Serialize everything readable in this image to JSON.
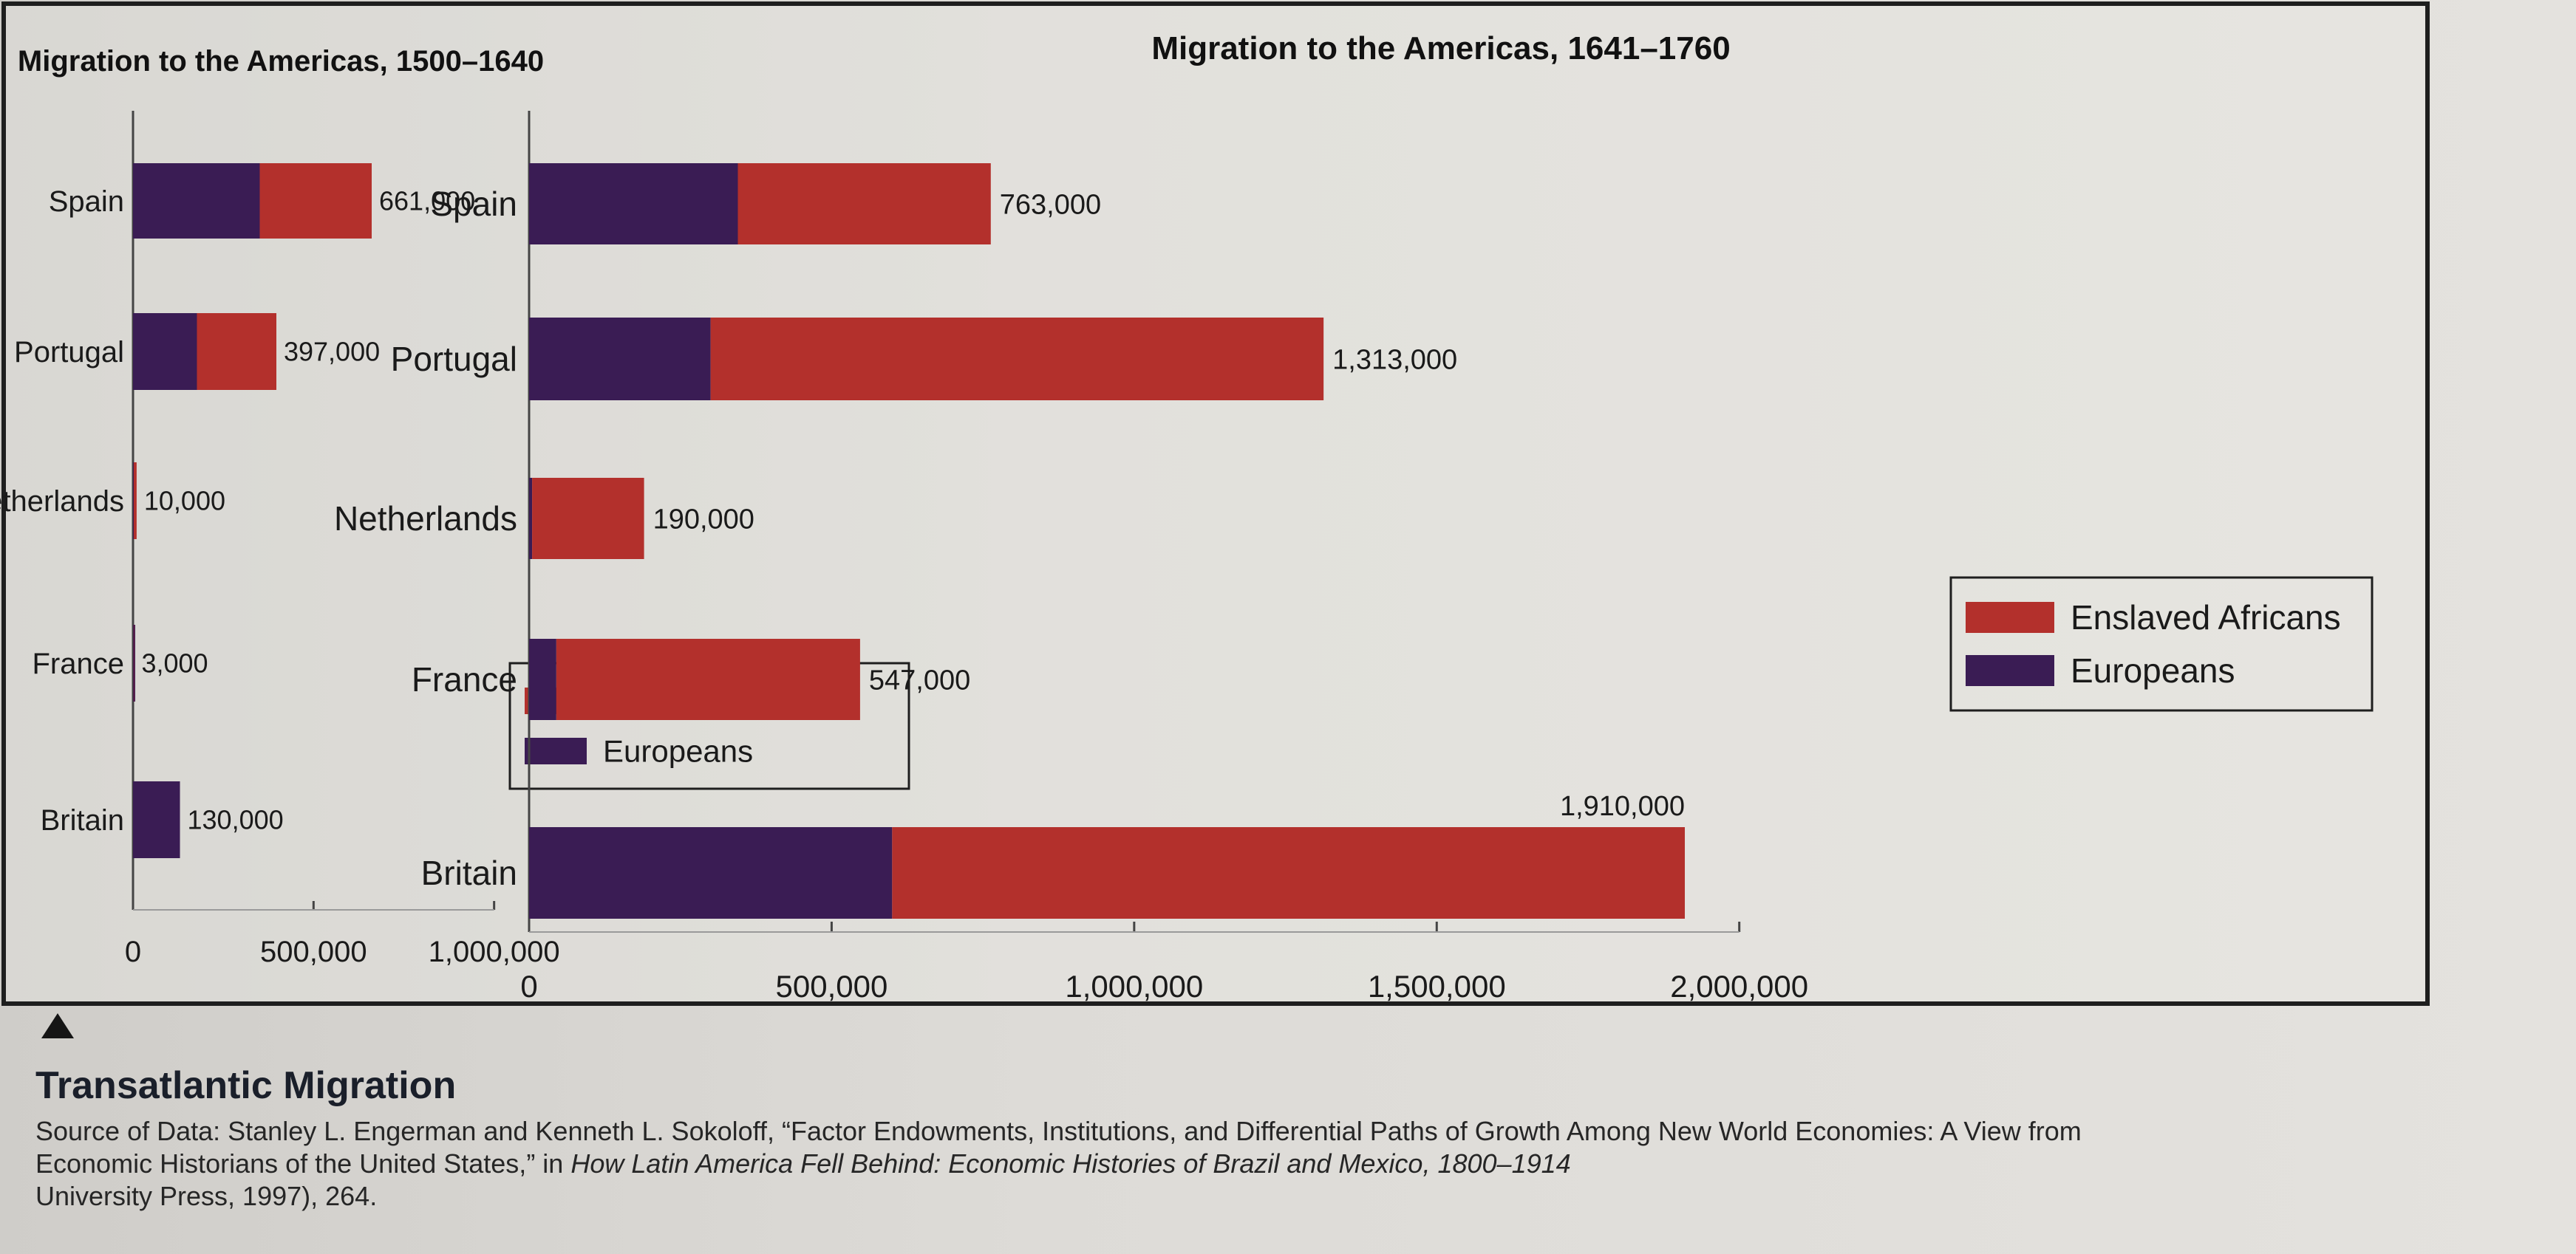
{
  "caption": {
    "title": "Transatlantic Migration",
    "source_line1": "Source of Data: Stanley L. Engerman and Kenneth L. Sokoloff, “Factor Endowments, Institutions, and Differential Paths of Growth Among New World Economies: A View from",
    "source_line2_prefix": "Economic Historians of the United States,” in ",
    "source_line2_italic": "How Latin America Fell Behind: Economic Histories of Brazil and Mexico, 1800–1914",
    "source_line3": "University Press, 1997), 264."
  },
  "colors": {
    "europeans": "#3a1c54",
    "enslaved_africans": "#b3302c",
    "axis": "#444444"
  },
  "chart_data": [
    {
      "type": "bar",
      "orientation": "horizontal",
      "stacked": true,
      "title": "Migration to the Americas, 1500–1640",
      "categories": [
        "Spain",
        "Portugal",
        "Netherlands",
        "France",
        "Britain"
      ],
      "series": [
        {
          "name": "Europeans",
          "values": [
            351000,
            177000,
            2000,
            2000,
            130000
          ]
        },
        {
          "name": "Enslaved Africans",
          "values": [
            310000,
            220000,
            8000,
            1000,
            0
          ]
        }
      ],
      "totals": [
        661000,
        397000,
        10000,
        3000,
        130000
      ],
      "total_labels": [
        "661,000",
        "397,000",
        "10,000",
        "3,000",
        "130,000"
      ],
      "xlim": [
        0,
        1100000
      ],
      "xticks": [
        0,
        500000,
        1000000
      ],
      "xtick_labels": [
        "0",
        "500,000",
        "1,000,000"
      ],
      "legend": {
        "position": "lower-right",
        "entries": [
          "Enslaved Africans",
          "Europeans"
        ]
      }
    },
    {
      "type": "bar",
      "orientation": "horizontal",
      "stacked": true,
      "title": "Migration to the Americas, 1641–1760",
      "categories": [
        "Spain",
        "Portugal",
        "Netherlands",
        "France",
        "Britain"
      ],
      "series": [
        {
          "name": "Europeans",
          "values": [
            345000,
            300000,
            5000,
            45000,
            600000
          ]
        },
        {
          "name": "Enslaved Africans",
          "values": [
            418000,
            1013000,
            185000,
            502000,
            1310000
          ]
        }
      ],
      "totals": [
        763000,
        1313000,
        190000,
        547000,
        1910000
      ],
      "total_labels": [
        "763,000",
        "1,313,000",
        "190,000",
        "547,000",
        "1,910,000"
      ],
      "xlim": [
        0,
        2000000
      ],
      "xticks": [
        0,
        500000,
        1000000,
        1500000,
        2000000
      ],
      "xtick_labels": [
        "0",
        "500,000",
        "1,000,000",
        "1,500,000",
        "2,000,000"
      ],
      "legend": {
        "position": "upper-right",
        "entries": [
          "Enslaved Africans",
          "Europeans"
        ]
      }
    }
  ]
}
